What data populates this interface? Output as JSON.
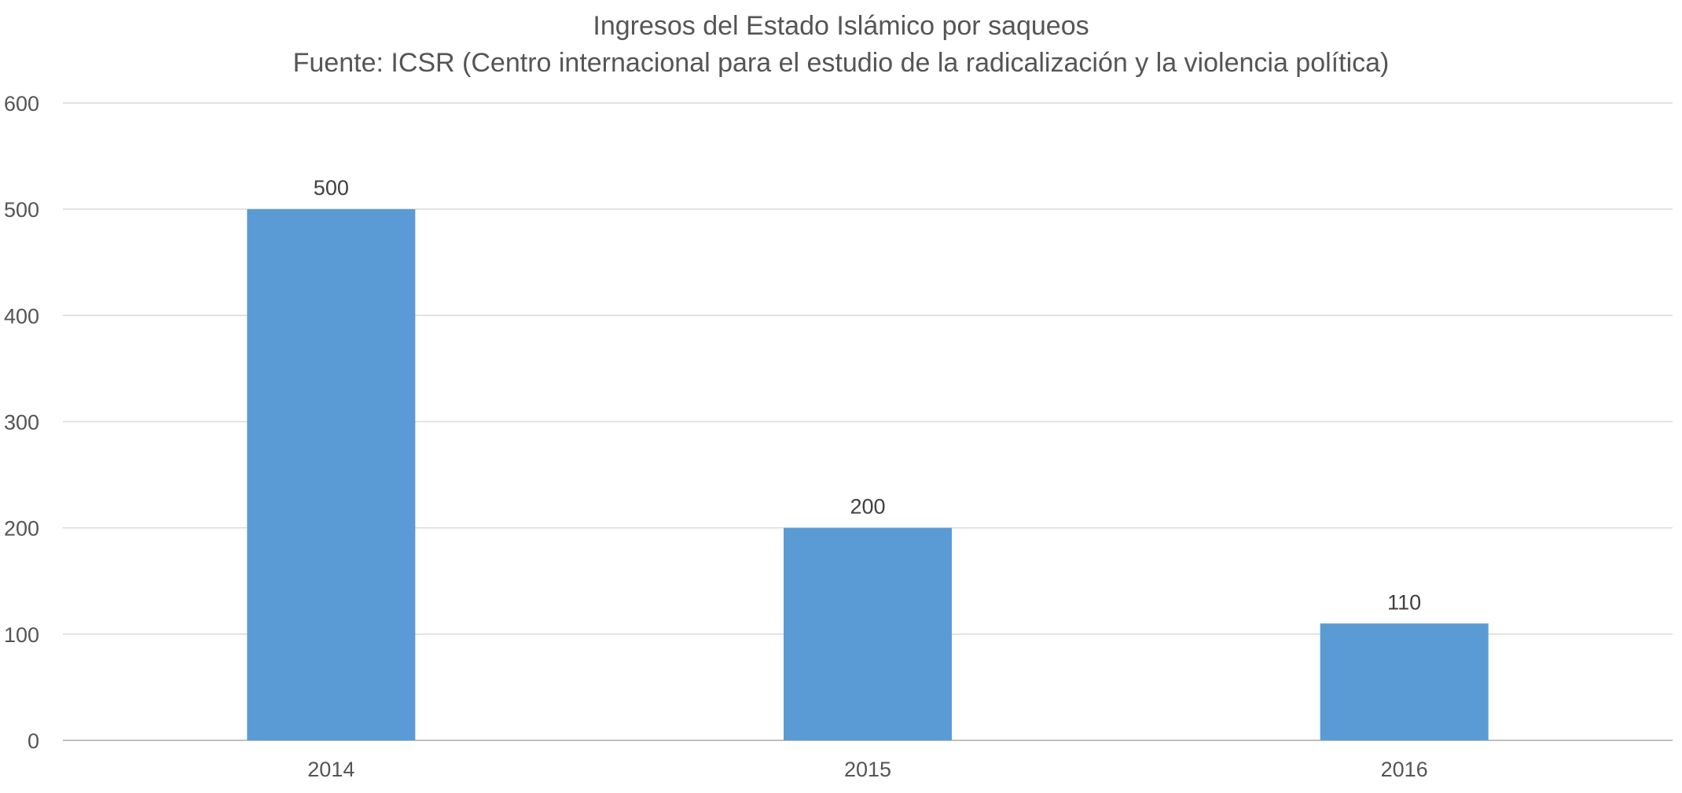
{
  "chart_data": {
    "type": "bar",
    "title": "Ingresos del Estado Islámico por saqueos",
    "subtitle": "Fuente: ICSR (Centro internacional para el estudio de la radicalización y la violencia política)",
    "xlabel": "",
    "ylabel": "",
    "categories": [
      "2014",
      "2015",
      "2016"
    ],
    "values": [
      500,
      200,
      110
    ],
    "data_labels": [
      "500",
      "200",
      "110"
    ],
    "ylim": [
      0,
      600
    ],
    "yticks": [
      0,
      100,
      200,
      300,
      400,
      500,
      600
    ],
    "grid": true,
    "legend": "none",
    "bar_color": "#5b9bd5"
  }
}
